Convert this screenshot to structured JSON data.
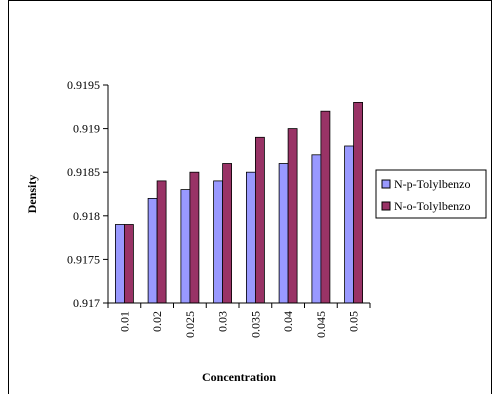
{
  "chart_data": {
    "type": "bar",
    "title": "",
    "xlabel": "Concentration",
    "ylabel": "Density",
    "categories": [
      "0.01",
      "0.02",
      "0.025",
      "0.03",
      "0.035",
      "0.04",
      "0.045",
      "0.05"
    ],
    "series": [
      {
        "name": "N-p-Tolylbenzo",
        "color": "#9999ff",
        "values": [
          0.9179,
          0.9182,
          0.9183,
          0.9184,
          0.9185,
          0.9186,
          0.9187,
          0.9188
        ]
      },
      {
        "name": "N-o-Tolylbenzo",
        "color": "#993366",
        "values": [
          0.9179,
          0.9184,
          0.9185,
          0.9186,
          0.9189,
          0.919,
          0.9192,
          0.9193
        ]
      }
    ],
    "ylim": [
      0.917,
      0.9195
    ],
    "yticks": [
      "0.917",
      "0.9175",
      "0.918",
      "0.9185",
      "0.919",
      "0.9195"
    ],
    "grid": false,
    "legend_position": "right",
    "x_tick_rotation": "vertical"
  }
}
